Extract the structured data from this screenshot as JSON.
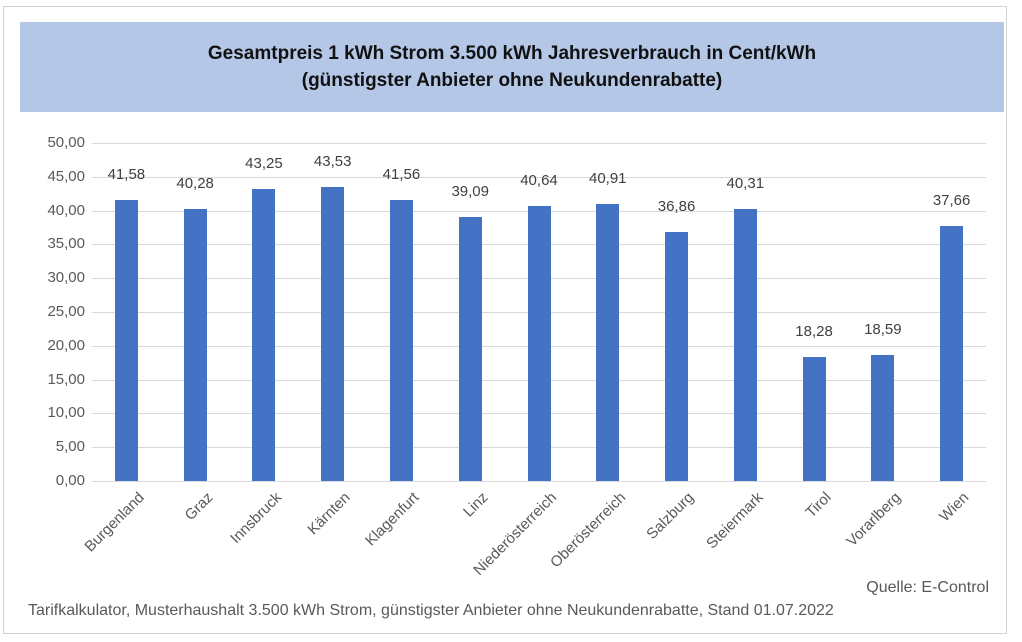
{
  "header": {
    "title_lines": [
      "Gesamtpreis 1 kWh Strom 3.500 kWh Jahresverbrauch in Cent/kWh",
      "(günstigster Anbieter ohne Neukundenrabatte)"
    ]
  },
  "footer": {
    "source": "Quelle: E-Control",
    "note": "Tarifkalkulator, Musterhaushalt 3.500 kWh Strom, günstigster Anbieter ohne Neukundenrabatte, Stand 01.07.2022"
  },
  "colors": {
    "bar": "#4472c4",
    "header_bg": "#b4c7e7",
    "gridline": "#d9d9d9",
    "axis_text": "#595959",
    "value_label_text": "#404040",
    "footer_text": "#595959",
    "frame_border": "#d2d2d2"
  },
  "chart_data": {
    "type": "bar",
    "title": "Gesamtpreis 1 kWh Strom 3.500 kWh Jahresverbrauch in Cent/kWh (günstigster Anbieter ohne Neukundenrabatte)",
    "xlabel": "",
    "ylabel": "",
    "legend": "none",
    "grid": true,
    "ylim": [
      0,
      50
    ],
    "y_tick_step": 5,
    "y_ticks": [
      "50,00",
      "45,00",
      "40,00",
      "35,00",
      "30,00",
      "25,00",
      "20,00",
      "15,00",
      "10,00",
      "5,00",
      "0,00"
    ],
    "categories": [
      "Burgenland",
      "Graz",
      "Innsbruck",
      "Kärnten",
      "Klagenfurt",
      "Linz",
      "Niederösterreich",
      "Oberösterreich",
      "Salzburg",
      "Steiermark",
      "Tirol",
      "Vorarlberg",
      "Wien"
    ],
    "values": [
      41.58,
      40.28,
      43.25,
      43.53,
      41.56,
      39.09,
      40.64,
      40.91,
      36.86,
      40.31,
      18.28,
      18.59,
      37.66
    ],
    "value_labels": [
      "41,58",
      "40,28",
      "43,25",
      "43,53",
      "41,56",
      "39,09",
      "40,64",
      "40,91",
      "36,86",
      "40,31",
      "18,28",
      "18,59",
      "37,66"
    ]
  }
}
